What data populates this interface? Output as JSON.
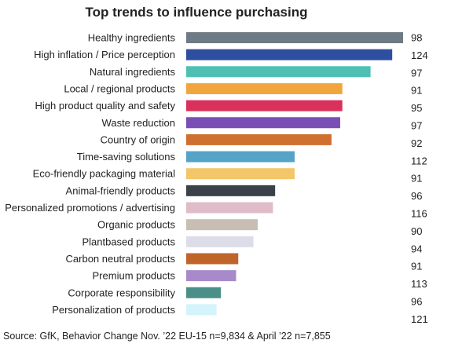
{
  "chart_data": {
    "type": "bar",
    "orientation": "horizontal",
    "title": "Top trends to influence purchasing",
    "categories": [
      "Healthy ingredients",
      "High inflation / Price perception",
      "Natural ingredients",
      "Local / regional products",
      "High product quality and safety",
      "Waste reduction",
      "Country of origin",
      "Time-saving solutions",
      "Eco-friendly packaging material",
      "Animal-friendly products",
      "Personalized promotions / advertising",
      "Organic products",
      "Plantbased products",
      "Carbon neutral products",
      "Premium products",
      "Corporate responsibility",
      "Personalization of products"
    ],
    "values": [
      100,
      95,
      85,
      72,
      72,
      71,
      67,
      50,
      50,
      41,
      40,
      33,
      31,
      24,
      23,
      16,
      14
    ],
    "index_labels": [
      98,
      124,
      97,
      91,
      95,
      97,
      92,
      112,
      91,
      96,
      116,
      90,
      94,
      91,
      113,
      96,
      121
    ],
    "colors": [
      "#6e7a84",
      "#2e4fa0",
      "#4dbfb3",
      "#f0a63c",
      "#d9315c",
      "#7a4fb5",
      "#cf7030",
      "#55a3c7",
      "#f4c66a",
      "#3b4148",
      "#dfbcc8",
      "#c9beb4",
      "#dcdde8",
      "#c0652a",
      "#a88acb",
      "#4b9088",
      "#d3f4fb"
    ],
    "xlim": [
      0,
      100
    ],
    "grid": false,
    "legend": "none"
  },
  "source": "Source: GfK, Behavior Change Nov. ’22 EU-15 n=9,834 & April ’22 n=7,855"
}
